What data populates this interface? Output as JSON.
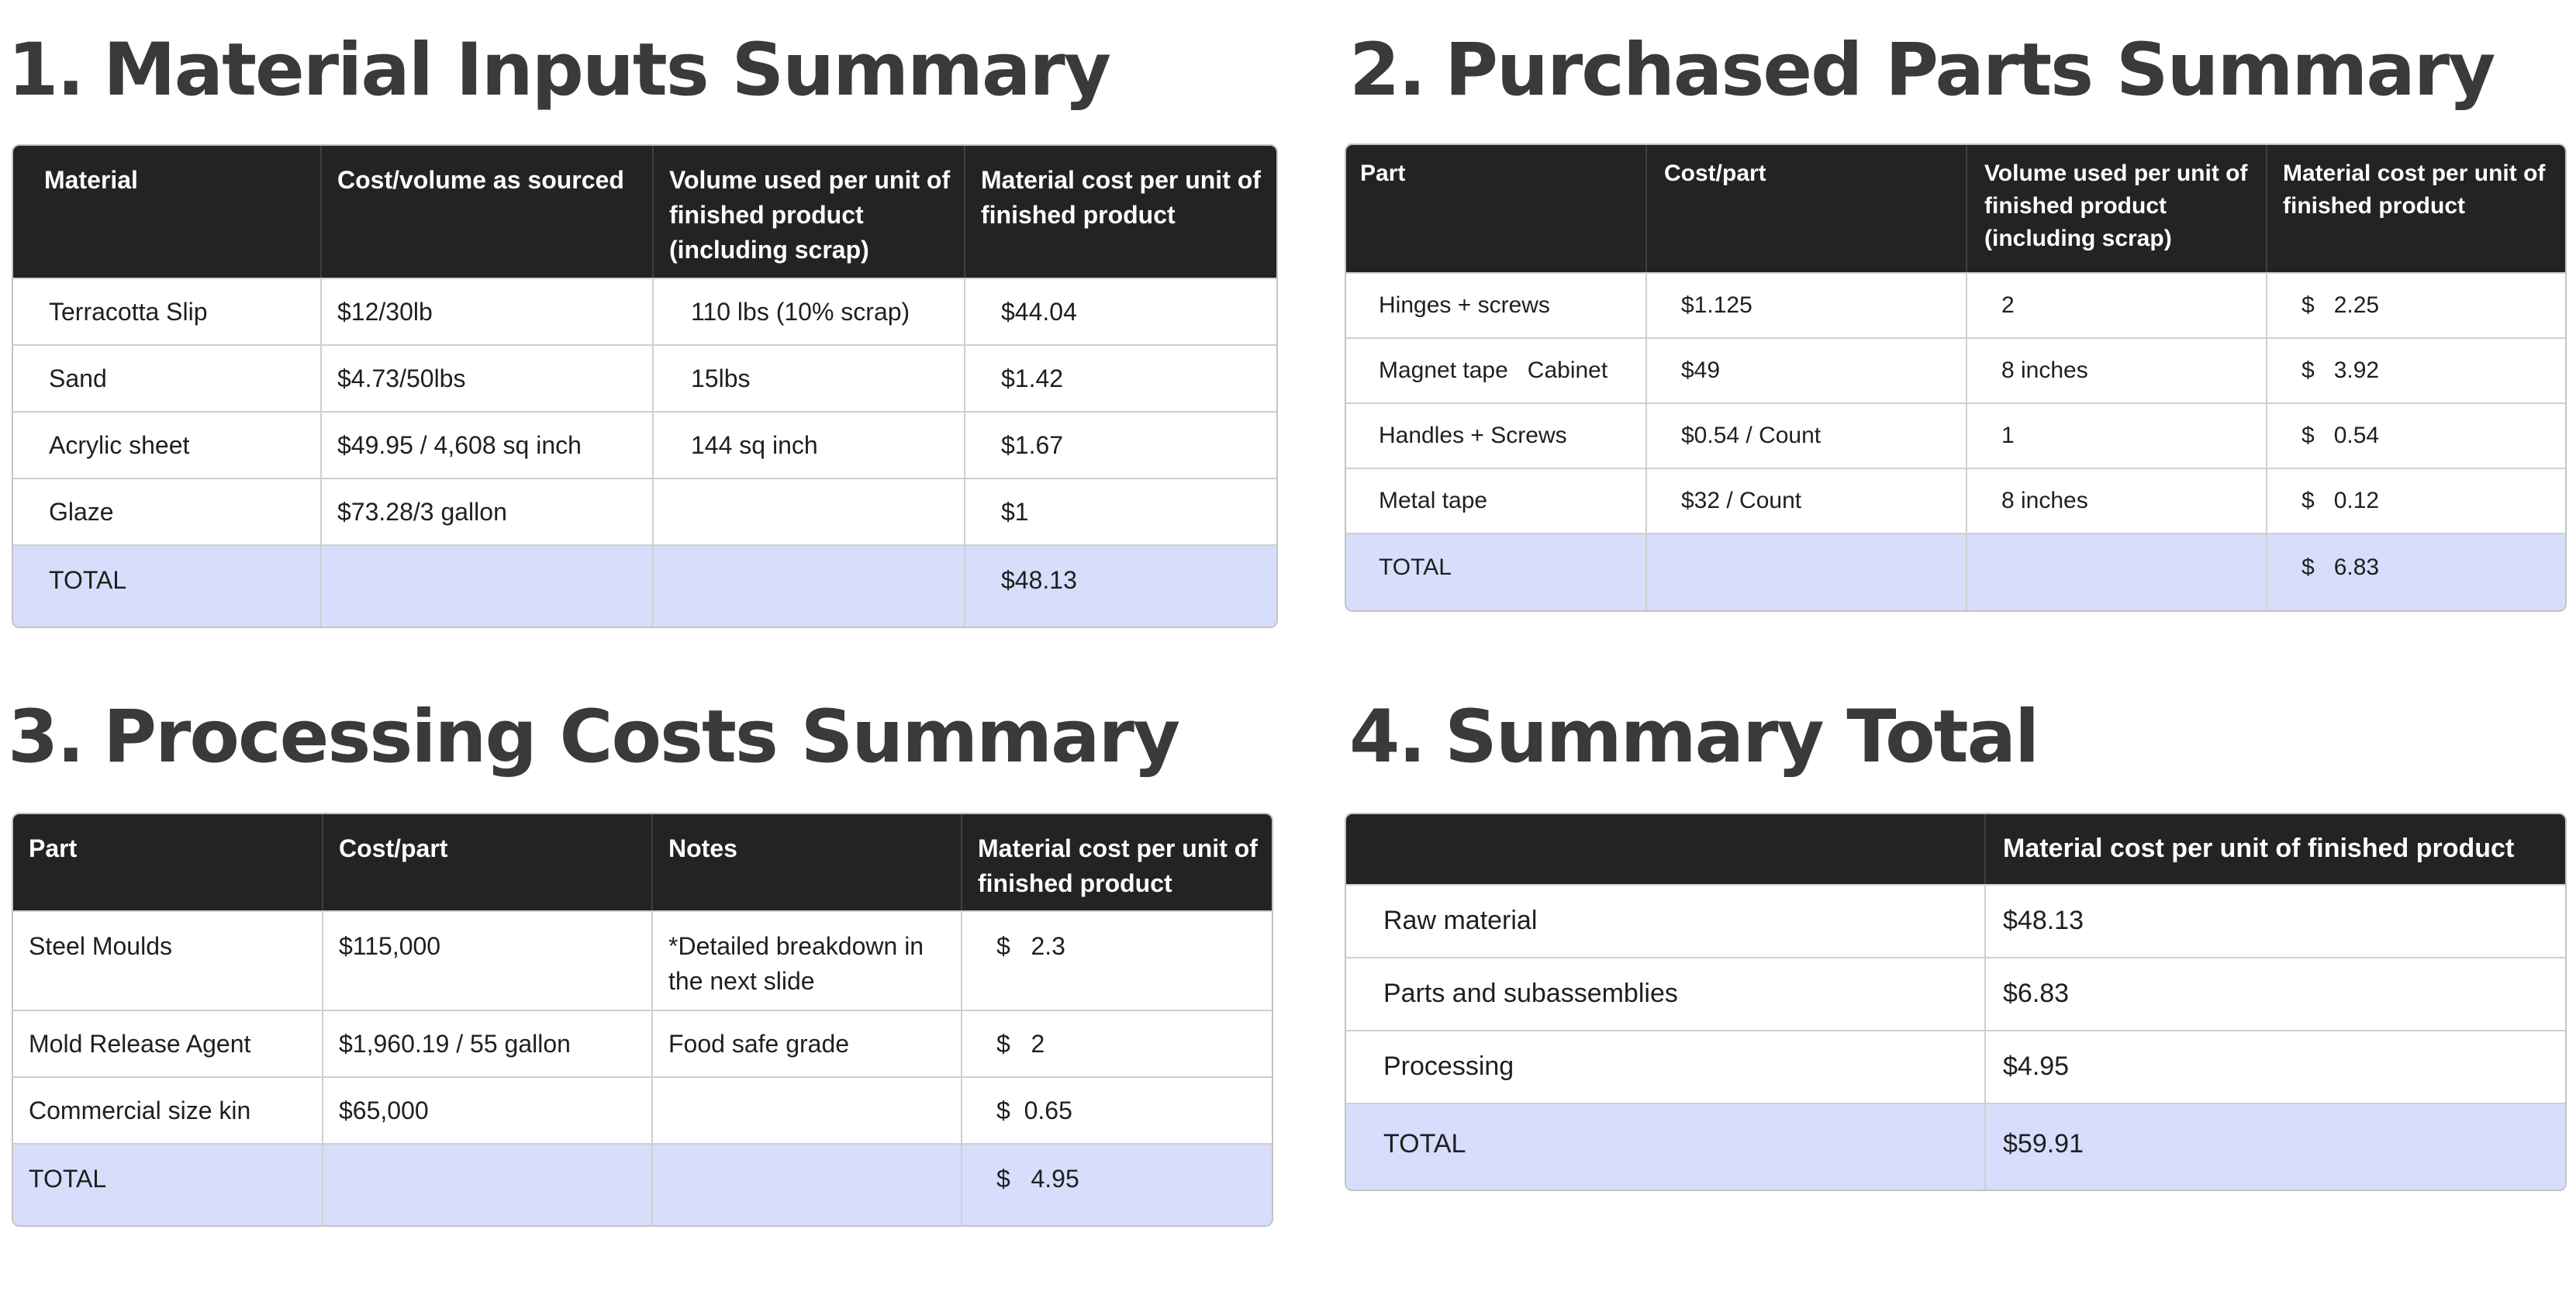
{
  "sections": [
    {
      "number": "1.",
      "title": "Material Inputs Summary",
      "headers": [
        "Material",
        "Cost/volume as sourced",
        "Volume used per unit of finished product (including scrap)",
        "Material cost per unit of finished product"
      ],
      "rows": [
        [
          "Terracotta Slip",
          "$12/30lb",
          "110 lbs (10% scrap)",
          "$44.04"
        ],
        [
          "Sand",
          "$4.73/50lbs",
          "15lbs",
          "$1.42"
        ],
        [
          "Acrylic sheet",
          "$49.95 / 4,608 sq inch",
          "144 sq inch",
          "$1.67"
        ],
        [
          "Glaze",
          "$73.28/3 gallon",
          "",
          "$1"
        ]
      ],
      "total": [
        "TOTAL",
        "",
        "",
        "$48.13"
      ]
    },
    {
      "number": "2.",
      "title": "Purchased Parts Summary",
      "headers": [
        "Part",
        "Cost/part",
        "Volume used per unit of finished product (including scrap)",
        "Material cost per unit of finished product"
      ],
      "rows": [
        [
          "Hinges + screws",
          "$1.125",
          "2",
          "$   2.25"
        ],
        [
          "Magnet tape   Cabinet",
          "$49",
          "8 inches",
          "$   3.92"
        ],
        [
          "Handles + Screws",
          "$0.54 / Count",
          "1",
          "$   0.54"
        ],
        [
          "Metal tape",
          "$32 / Count",
          "8 inches",
          "$   0.12"
        ]
      ],
      "total": [
        "TOTAL",
        "",
        "",
        "$   6.83"
      ]
    },
    {
      "number": "3.",
      "title": "Processing Costs Summary",
      "headers": [
        "Part",
        "Cost/part",
        "Notes",
        "Material cost per unit of finished product"
      ],
      "rows": [
        [
          "Steel Moulds",
          "$115,000",
          "*Detailed breakdown in the next slide",
          "$   2.3"
        ],
        [
          "Mold Release Agent",
          "$1,960.19 / 55 gallon",
          "Food safe grade",
          "$   2"
        ],
        [
          "Commercial size kin",
          "$65,000",
          "",
          "$  0.65"
        ]
      ],
      "total": [
        "TOTAL",
        "",
        "",
        "$   4.95"
      ]
    },
    {
      "number": "4.",
      "title": "Summary Total",
      "headers": [
        "",
        "Material cost per unit of finished product"
      ],
      "rows": [
        [
          "Raw material",
          "$48.13"
        ],
        [
          "Parts and subassemblies",
          "$6.83"
        ],
        [
          "Processing",
          "$4.95"
        ]
      ],
      "total": [
        "TOTAL",
        "$59.91"
      ]
    }
  ]
}
